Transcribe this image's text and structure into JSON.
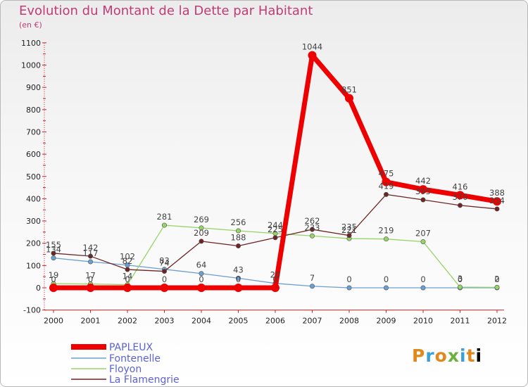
{
  "header": {
    "title": "Evolution du Montant de la Dette par Habitant",
    "subtitle": "(en €)"
  },
  "logo": {
    "letters": [
      "P",
      "r",
      "o",
      "x",
      "i",
      "t",
      "i"
    ]
  },
  "chart_data": {
    "type": "line",
    "title": "Evolution du Montant de la Dette par Habitant",
    "ylabel": "(en €)",
    "x": [
      "2000",
      "2001",
      "2002",
      "2003",
      "2004",
      "2005",
      "2006",
      "2007",
      "2008",
      "2009",
      "2010",
      "2011",
      "2012"
    ],
    "ylim": [
      -100,
      1100
    ],
    "yticks": [
      -100,
      0,
      100,
      200,
      300,
      400,
      500,
      600,
      700,
      800,
      900,
      1000,
      1100
    ],
    "grid": false,
    "legend": "bottom-left",
    "series": [
      {
        "name": "PAPLEUX",
        "color": "#ee0000",
        "width": 7,
        "values": [
          0,
          0,
          0,
          0,
          0,
          0,
          0,
          1044,
          851,
          475,
          442,
          416,
          388
        ]
      },
      {
        "name": "Fontenelle",
        "color": "#6b9fd1",
        "width": 1.3,
        "values": [
          134,
          117,
          102,
          83,
          64,
          43,
          20,
          7,
          0,
          0,
          0,
          0,
          0
        ]
      },
      {
        "name": "Floyon",
        "color": "#95d466",
        "width": 1.3,
        "values": [
          19,
          17,
          14,
          281,
          269,
          256,
          244,
          233,
          221,
          219,
          207,
          3,
          2
        ]
      },
      {
        "name": "La Flamengrie",
        "color": "#6d2424",
        "width": 1.3,
        "values": [
          155,
          142,
          82,
          74,
          209,
          188,
          225,
          262,
          235,
          419,
          395,
          370,
          354
        ]
      }
    ]
  }
}
